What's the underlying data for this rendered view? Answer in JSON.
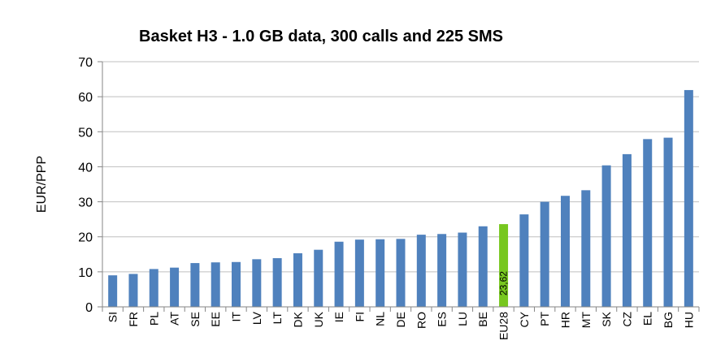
{
  "chart_data": {
    "type": "bar",
    "title": "Basket H3 - 1.0 GB data, 300 calls and 225 SMS",
    "xlabel": "",
    "ylabel": "EUR/PPP",
    "ylim": [
      0,
      70
    ],
    "yticks": [
      "0",
      "10",
      "20",
      "30",
      "40",
      "50",
      "60",
      "70"
    ],
    "grid": true,
    "legend": "none",
    "categories": [
      "SI",
      "FR",
      "PL",
      "AT",
      "SE",
      "EE",
      "IT",
      "LV",
      "LT",
      "DK",
      "UK",
      "IE",
      "FI",
      "NL",
      "DE",
      "RO",
      "ES",
      "LU",
      "BE",
      "EU28",
      "CY",
      "PT",
      "HR",
      "MT",
      "SK",
      "CZ",
      "EL",
      "BG",
      "HU"
    ],
    "values": [
      9.0,
      9.4,
      10.8,
      11.2,
      12.5,
      12.7,
      12.8,
      13.6,
      13.9,
      15.3,
      16.3,
      18.6,
      19.2,
      19.3,
      19.4,
      20.6,
      20.8,
      21.2,
      23.0,
      23.62,
      26.4,
      30.0,
      31.7,
      33.3,
      40.4,
      43.6,
      47.9,
      48.3,
      61.9
    ],
    "highlight_category": "EU28",
    "highlight_label": "23,62",
    "colors": {
      "bar": "#4F81BD",
      "highlight": "#77C71F",
      "grid": "#BFBFBF",
      "axis": "#868686"
    }
  }
}
